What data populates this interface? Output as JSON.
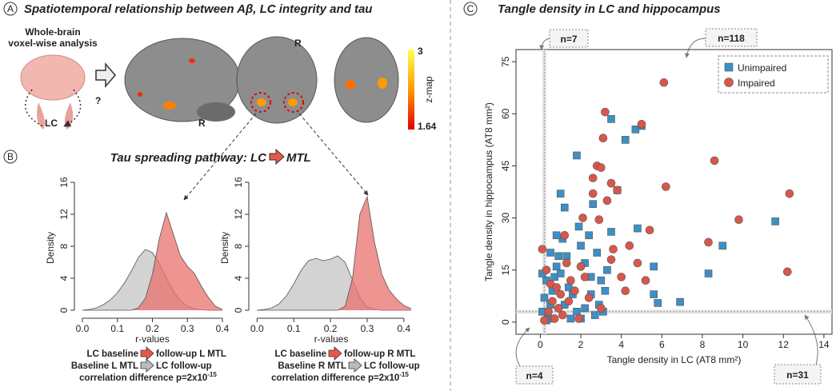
{
  "panel_a": {
    "label": "A",
    "title": "Spatiotemporal relationship between Aβ, LC integrity and tau",
    "analysis": [
      "Whole-brain",
      "voxel-wise analysis"
    ],
    "lc": "LC",
    "question": "?",
    "orientation": [
      "R",
      "R"
    ],
    "colorbar": {
      "max": "3",
      "min": "1.64",
      "title": "z-map"
    }
  },
  "panel_b": {
    "label": "B",
    "title": "Tau spreading pathway: LC",
    "title_end": "MTL",
    "captions": [
      {
        "line1": [
          "LC baseline",
          "follow-up L MTL"
        ],
        "line2": [
          "Baseline L MTL",
          "LC follow-up"
        ],
        "line3": "correlation difference p=2x10",
        "exponent": "-15"
      },
      {
        "line1": [
          "LC baseline",
          "follow-up R MTL"
        ],
        "line2": [
          "Baseline R MTL",
          "LC follow-up"
        ],
        "line3": "correlation difference p=2x10",
        "exponent": "-15"
      }
    ]
  },
  "panel_c": {
    "label": "C",
    "title": "Tangle density in LC and hippocampus"
  },
  "chart_data": [
    {
      "type": "area",
      "xlabel": "r-values",
      "ylabel": "Density",
      "x": [
        0.0,
        0.02,
        0.04,
        0.06,
        0.08,
        0.1,
        0.12,
        0.14,
        0.16,
        0.18,
        0.2,
        0.22,
        0.24,
        0.26,
        0.28,
        0.3,
        0.32,
        0.34,
        0.36,
        0.38,
        0.4
      ],
      "series": [
        {
          "color": "#c4c4c4",
          "values": [
            0,
            0.1,
            0.3,
            0.7,
            1.3,
            2.2,
            3.4,
            4.9,
            6.6,
            7.6,
            7.2,
            5.8,
            4.0,
            2.4,
            1.2,
            0.5,
            0.2,
            0.05,
            0,
            0,
            0
          ]
        },
        {
          "color": "#e8706c",
          "values": [
            0,
            0,
            0,
            0,
            0,
            0,
            0,
            0,
            0.3,
            1.5,
            4.5,
            9.0,
            12.2,
            9.5,
            6.8,
            5.5,
            4.6,
            3.0,
            1.6,
            0.5,
            0.1
          ]
        }
      ],
      "xlim": [
        -0.016,
        0.416
      ],
      "ylim": [
        -0.7,
        16.3
      ],
      "xticks": [
        {
          "value": 0,
          "label": "0.0"
        },
        0.1,
        0.2,
        0.3,
        0.4
      ],
      "yticks": [
        0,
        4,
        8,
        12,
        16
      ]
    },
    {
      "type": "area",
      "xlabel": "r-values",
      "ylabel": "Density",
      "x": [
        0.0,
        0.02,
        0.04,
        0.06,
        0.08,
        0.1,
        0.12,
        0.14,
        0.16,
        0.18,
        0.2,
        0.22,
        0.24,
        0.26,
        0.28,
        0.3,
        0.32,
        0.34,
        0.36,
        0.38,
        0.4,
        0.42
      ],
      "series": [
        {
          "color": "#c4c4c4",
          "values": [
            0,
            0.1,
            0.3,
            0.8,
            1.8,
            3.3,
            5.0,
            6.2,
            6.5,
            6.2,
            6.4,
            6.8,
            6.0,
            3.8,
            1.6,
            0.4,
            0.1,
            0,
            0,
            0,
            0,
            0
          ]
        },
        {
          "color": "#e8706c",
          "values": [
            0,
            0,
            0,
            0,
            0,
            0,
            0,
            0,
            0,
            0,
            0,
            0,
            0.5,
            4.0,
            12.0,
            14.2,
            8.5,
            4.5,
            2.5,
            1.4,
            0.6,
            0.2
          ]
        }
      ],
      "xlim": [
        -0.016,
        0.42
      ],
      "ylim": [
        -0.7,
        16.3
      ],
      "xticks": [
        {
          "value": 0,
          "label": "0.0"
        },
        0.1,
        0.2,
        0.3,
        0.4
      ],
      "yticks": [
        0,
        4,
        8,
        12,
        16
      ]
    },
    {
      "type": "scatter",
      "xlabel": "Tangle density in LC (AT8 mm²)",
      "ylabel": "Tangle density in hippocampus (AT8 mm²)",
      "xlim": [
        -1.2,
        14.4
      ],
      "ylim": [
        -3.5,
        78.5
      ],
      "xticks": [
        0,
        2,
        4,
        6,
        8,
        10,
        12,
        14
      ],
      "yticks": [
        0,
        15,
        30,
        45,
        60,
        75
      ],
      "legend": "top-right",
      "thresholds": {
        "x": 0.2,
        "y": 3
      },
      "annotations": [
        "n=7",
        "n=118",
        "n=4",
        "n=31"
      ],
      "series": [
        {
          "name": "Unimpaired",
          "color": "#3d8fc6",
          "marker": "square",
          "x": [
            0.1,
            0.2,
            0.3,
            0.1,
            0.4,
            0.5,
            0.6,
            0.7,
            0.8,
            0.9,
            0.5,
            1.0,
            1.2,
            1.1,
            0.8,
            1.3,
            1.0,
            1.4,
            1.6,
            1.2,
            1.8,
            2.0,
            2.2,
            1.5,
            1.8,
            2.0,
            2.2,
            2.4,
            2.6,
            2.5,
            2.8,
            3.0,
            3.2,
            2.9,
            3.5,
            3.5,
            3.8,
            3.3,
            2.7,
            4.2,
            4.7,
            5.0,
            4.8,
            5.6,
            5.6,
            5.8,
            6.9,
            8.3,
            9.0,
            11.6,
            1.9,
            3.1,
            0.3,
            2.5
          ],
          "values": [
            3,
            7,
            12,
            14,
            1,
            5,
            9,
            13,
            16,
            19,
            20,
            37,
            33,
            24,
            25,
            19,
            14,
            10,
            8,
            5,
            3,
            1,
            4,
            1,
            48,
            22,
            17,
            25,
            34,
            13,
            20,
            12,
            9,
            5,
            26,
            58.5,
            38,
            15,
            2,
            52.5,
            55.5,
            56.5,
            27,
            16,
            8,
            5.5,
            5.8,
            14,
            22,
            29,
            27.5,
            3,
            0.5,
            8
          ]
        },
        {
          "name": "Impaired",
          "color": "#d9574a",
          "marker": "circle",
          "x": [
            0.1,
            0.2,
            0.3,
            0.5,
            0.4,
            0.6,
            0.7,
            0.8,
            0.9,
            1.0,
            1.1,
            1.3,
            1.5,
            1.4,
            1.7,
            1.9,
            2.0,
            2.2,
            2.1,
            2.6,
            2.8,
            3.0,
            3.1,
            3.2,
            2.6,
            2.9,
            3.3,
            3.5,
            3.8,
            3.6,
            3.5,
            4.0,
            4.4,
            4.8,
            5.0,
            5.4,
            6.1,
            6.2,
            5.2,
            8.3,
            8.6,
            9.8,
            12.3,
            12.2,
            2.4,
            3.0,
            1.2,
            4.2
          ],
          "values": [
            21,
            0.5,
            15,
            11,
            3,
            6,
            1,
            10,
            4,
            8,
            2,
            17,
            12,
            6,
            9,
            1,
            16,
            13,
            30,
            41.5,
            45,
            44.5,
            53,
            60.5,
            37,
            29.5,
            35,
            40,
            38,
            21,
            18,
            13,
            22,
            17,
            57,
            26.5,
            69,
            39,
            12,
            23,
            46.5,
            29.5,
            37,
            14.5,
            7,
            4,
            25,
            9
          ]
        }
      ]
    }
  ]
}
